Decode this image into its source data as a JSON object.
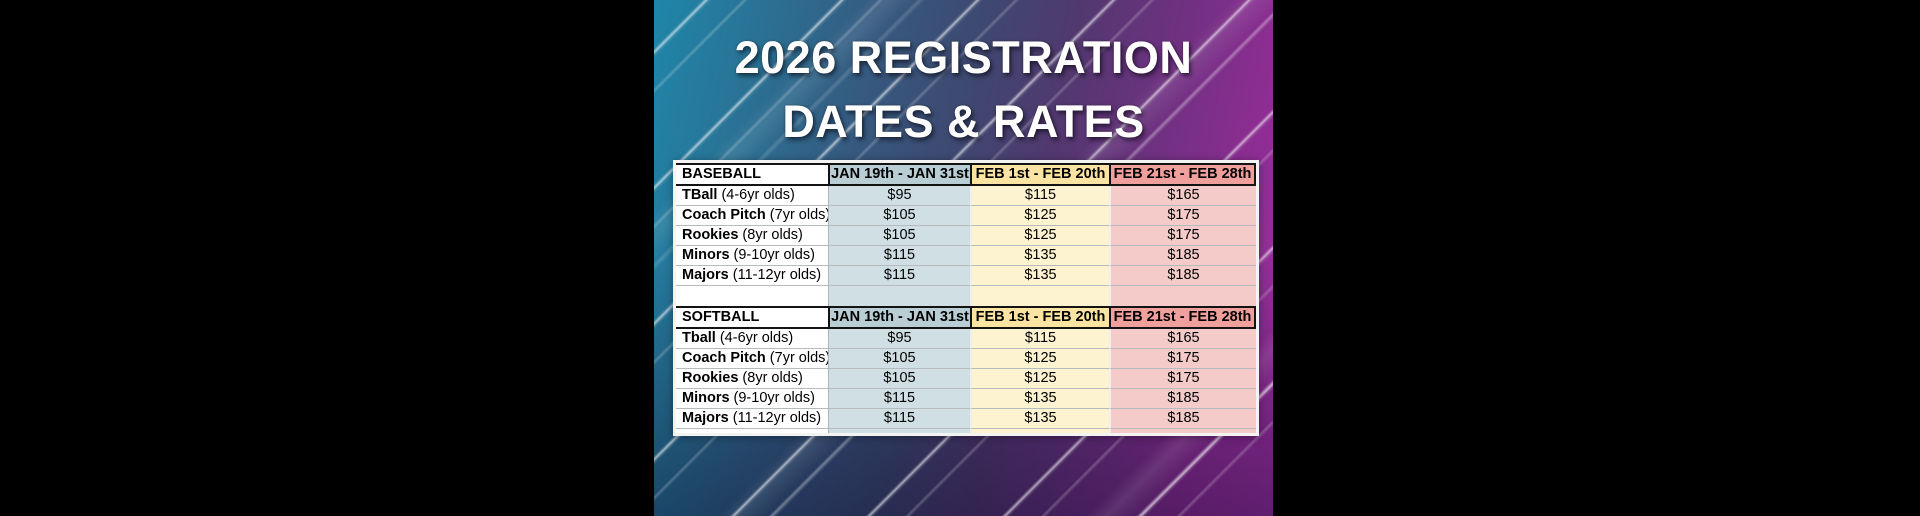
{
  "poster": {
    "title_line1": "2026 REGISTRATION",
    "title_line2": "DATES & RATES",
    "colors": {
      "gradient_teal": "#1f86a9",
      "gradient_navy": "#3e4870",
      "gradient_magenta": "#9b30a0",
      "letterbox": "#000000",
      "title_text": "#ffffff",
      "header_blue": "#b9ced4",
      "header_yellow": "#fbe4a2",
      "header_red": "#f0a09c",
      "tint_blue": "#cfdfe3",
      "tint_yellow": "#fdf3d0",
      "tint_red": "#f5cbc9"
    }
  },
  "tables": [
    {
      "name": "BASEBALL",
      "columns": [
        "JAN 19th - JAN 31st",
        "FEB 1st - FEB 20th",
        "FEB 21st - FEB 28th"
      ],
      "rows": [
        {
          "division": "TBall",
          "ages": "(4-6yr olds)",
          "prices": [
            "$95",
            "$115",
            "$165"
          ]
        },
        {
          "division": "Coach Pitch",
          "ages": "(7yr olds)",
          "prices": [
            "$105",
            "$125",
            "$175"
          ]
        },
        {
          "division": "Rookies",
          "ages": "(8yr olds)",
          "prices": [
            "$105",
            "$125",
            "$175"
          ]
        },
        {
          "division": "Minors",
          "ages": "(9-10yr olds)",
          "prices": [
            "$115",
            "$135",
            "$185"
          ]
        },
        {
          "division": "Majors",
          "ages": "(11-12yr olds)",
          "prices": [
            "$115",
            "$135",
            "$185"
          ]
        }
      ]
    },
    {
      "name": "SOFTBALL",
      "columns": [
        "JAN 19th - JAN 31st",
        "FEB 1st - FEB 20th",
        "FEB 21st - FEB 28th"
      ],
      "rows": [
        {
          "division": "Tball",
          "ages": "(4-6yr olds)",
          "prices": [
            "$95",
            "$115",
            "$165"
          ]
        },
        {
          "division": "Coach Pitch",
          "ages": "(7yr olds)",
          "prices": [
            "$105",
            "$125",
            "$175"
          ]
        },
        {
          "division": "Rookies",
          "ages": "(8yr olds)",
          "prices": [
            "$105",
            "$125",
            "$175"
          ]
        },
        {
          "division": "Minors",
          "ages": "(9-10yr olds)",
          "prices": [
            "$115",
            "$135",
            "$185"
          ]
        },
        {
          "division": "Majors",
          "ages": "(11-12yr olds)",
          "prices": [
            "$115",
            "$135",
            "$185"
          ]
        }
      ]
    }
  ]
}
